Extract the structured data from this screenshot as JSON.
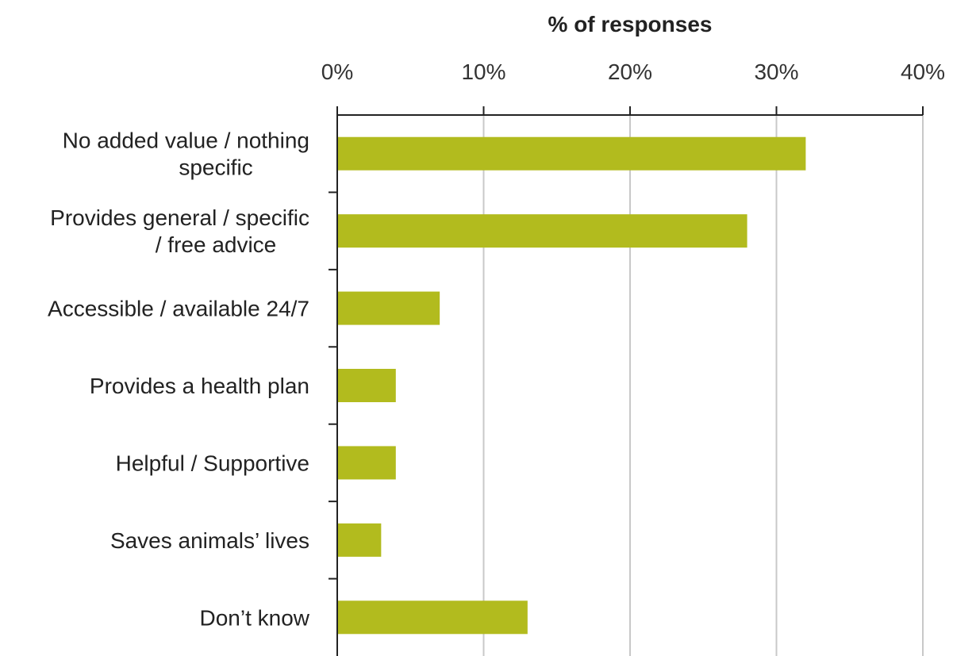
{
  "chart_data": {
    "type": "bar",
    "orientation": "horizontal",
    "xlabel": "% of responses",
    "xlabel_position": "top",
    "xlim": [
      0,
      40
    ],
    "xticks": [
      "0%",
      "10%",
      "20%",
      "30%",
      "40%"
    ],
    "grid": true,
    "categories": [
      [
        "No added value / nothing",
        "specific"
      ],
      [
        "Provides general / specific",
        "/ free advice"
      ],
      [
        "Accessible / available 24/7"
      ],
      [
        "Provides a health plan"
      ],
      [
        "Helpful / Supportive"
      ],
      [
        "Saves animals’ lives"
      ],
      [
        "Don’t know"
      ]
    ],
    "values": [
      32,
      28,
      7,
      4,
      4,
      3,
      13
    ],
    "bar_color": "#b2bb1e"
  }
}
